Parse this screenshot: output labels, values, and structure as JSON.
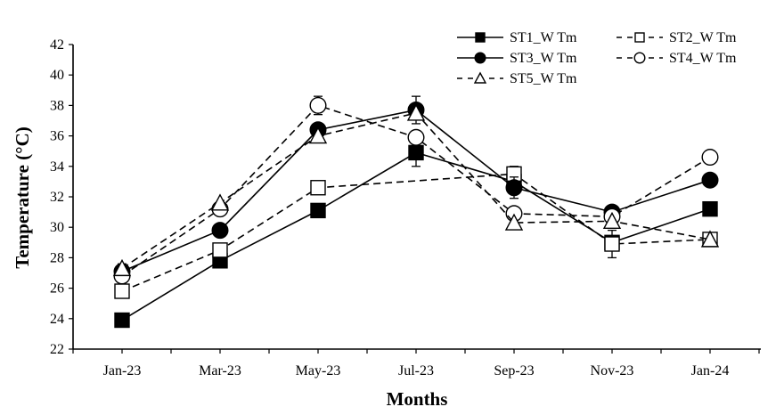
{
  "chart_data": {
    "type": "line",
    "title": "",
    "xlabel": "Months",
    "ylabel": "Temperature (°C)",
    "x": [
      "Jan-23",
      "Mar-23",
      "May-23",
      "Jul-23",
      "Sep-23",
      "Nov-23",
      "Jan-24"
    ],
    "ylim": [
      22,
      42
    ],
    "yticks": [
      22,
      24,
      26,
      28,
      30,
      32,
      34,
      36,
      38,
      40,
      42
    ],
    "grid": false,
    "legend_position": "top-right",
    "series": [
      {
        "name": "ST1_W Tm",
        "marker": "square",
        "filled": true,
        "dashed": false,
        "values": [
          23.9,
          27.8,
          31.1,
          34.9,
          33.0,
          29.0,
          31.2
        ],
        "errors": [
          0.3,
          0.0,
          0.0,
          0.9,
          0.0,
          0.0,
          0.0
        ]
      },
      {
        "name": "ST2_W Tm",
        "marker": "square",
        "filled": false,
        "dashed": true,
        "values": [
          25.8,
          28.5,
          32.6,
          null,
          33.5,
          28.9,
          29.2
        ],
        "errors": [
          0.0,
          0.0,
          0.0,
          0.0,
          0.5,
          0.9,
          0.0
        ]
      },
      {
        "name": "ST3_W Tm",
        "marker": "circle",
        "filled": true,
        "dashed": false,
        "values": [
          27.1,
          29.8,
          36.4,
          37.7,
          32.6,
          31.0,
          33.1
        ],
        "errors": [
          0.5,
          0.0,
          0.0,
          0.9,
          0.7,
          0.0,
          0.0
        ]
      },
      {
        "name": "ST4_W Tm",
        "marker": "circle",
        "filled": false,
        "dashed": true,
        "values": [
          26.8,
          31.2,
          38.0,
          35.9,
          30.9,
          30.7,
          34.6
        ],
        "errors": [
          0.0,
          0.0,
          0.6,
          0.4,
          0.0,
          0.0,
          0.0
        ]
      },
      {
        "name": "ST5_W Tm",
        "marker": "triangle",
        "filled": false,
        "dashed": true,
        "values": [
          27.3,
          31.6,
          36.0,
          37.5,
          30.3,
          30.4,
          29.2
        ],
        "errors": [
          0.0,
          0.0,
          0.0,
          0.0,
          0.0,
          0.0,
          0.0
        ]
      }
    ]
  }
}
